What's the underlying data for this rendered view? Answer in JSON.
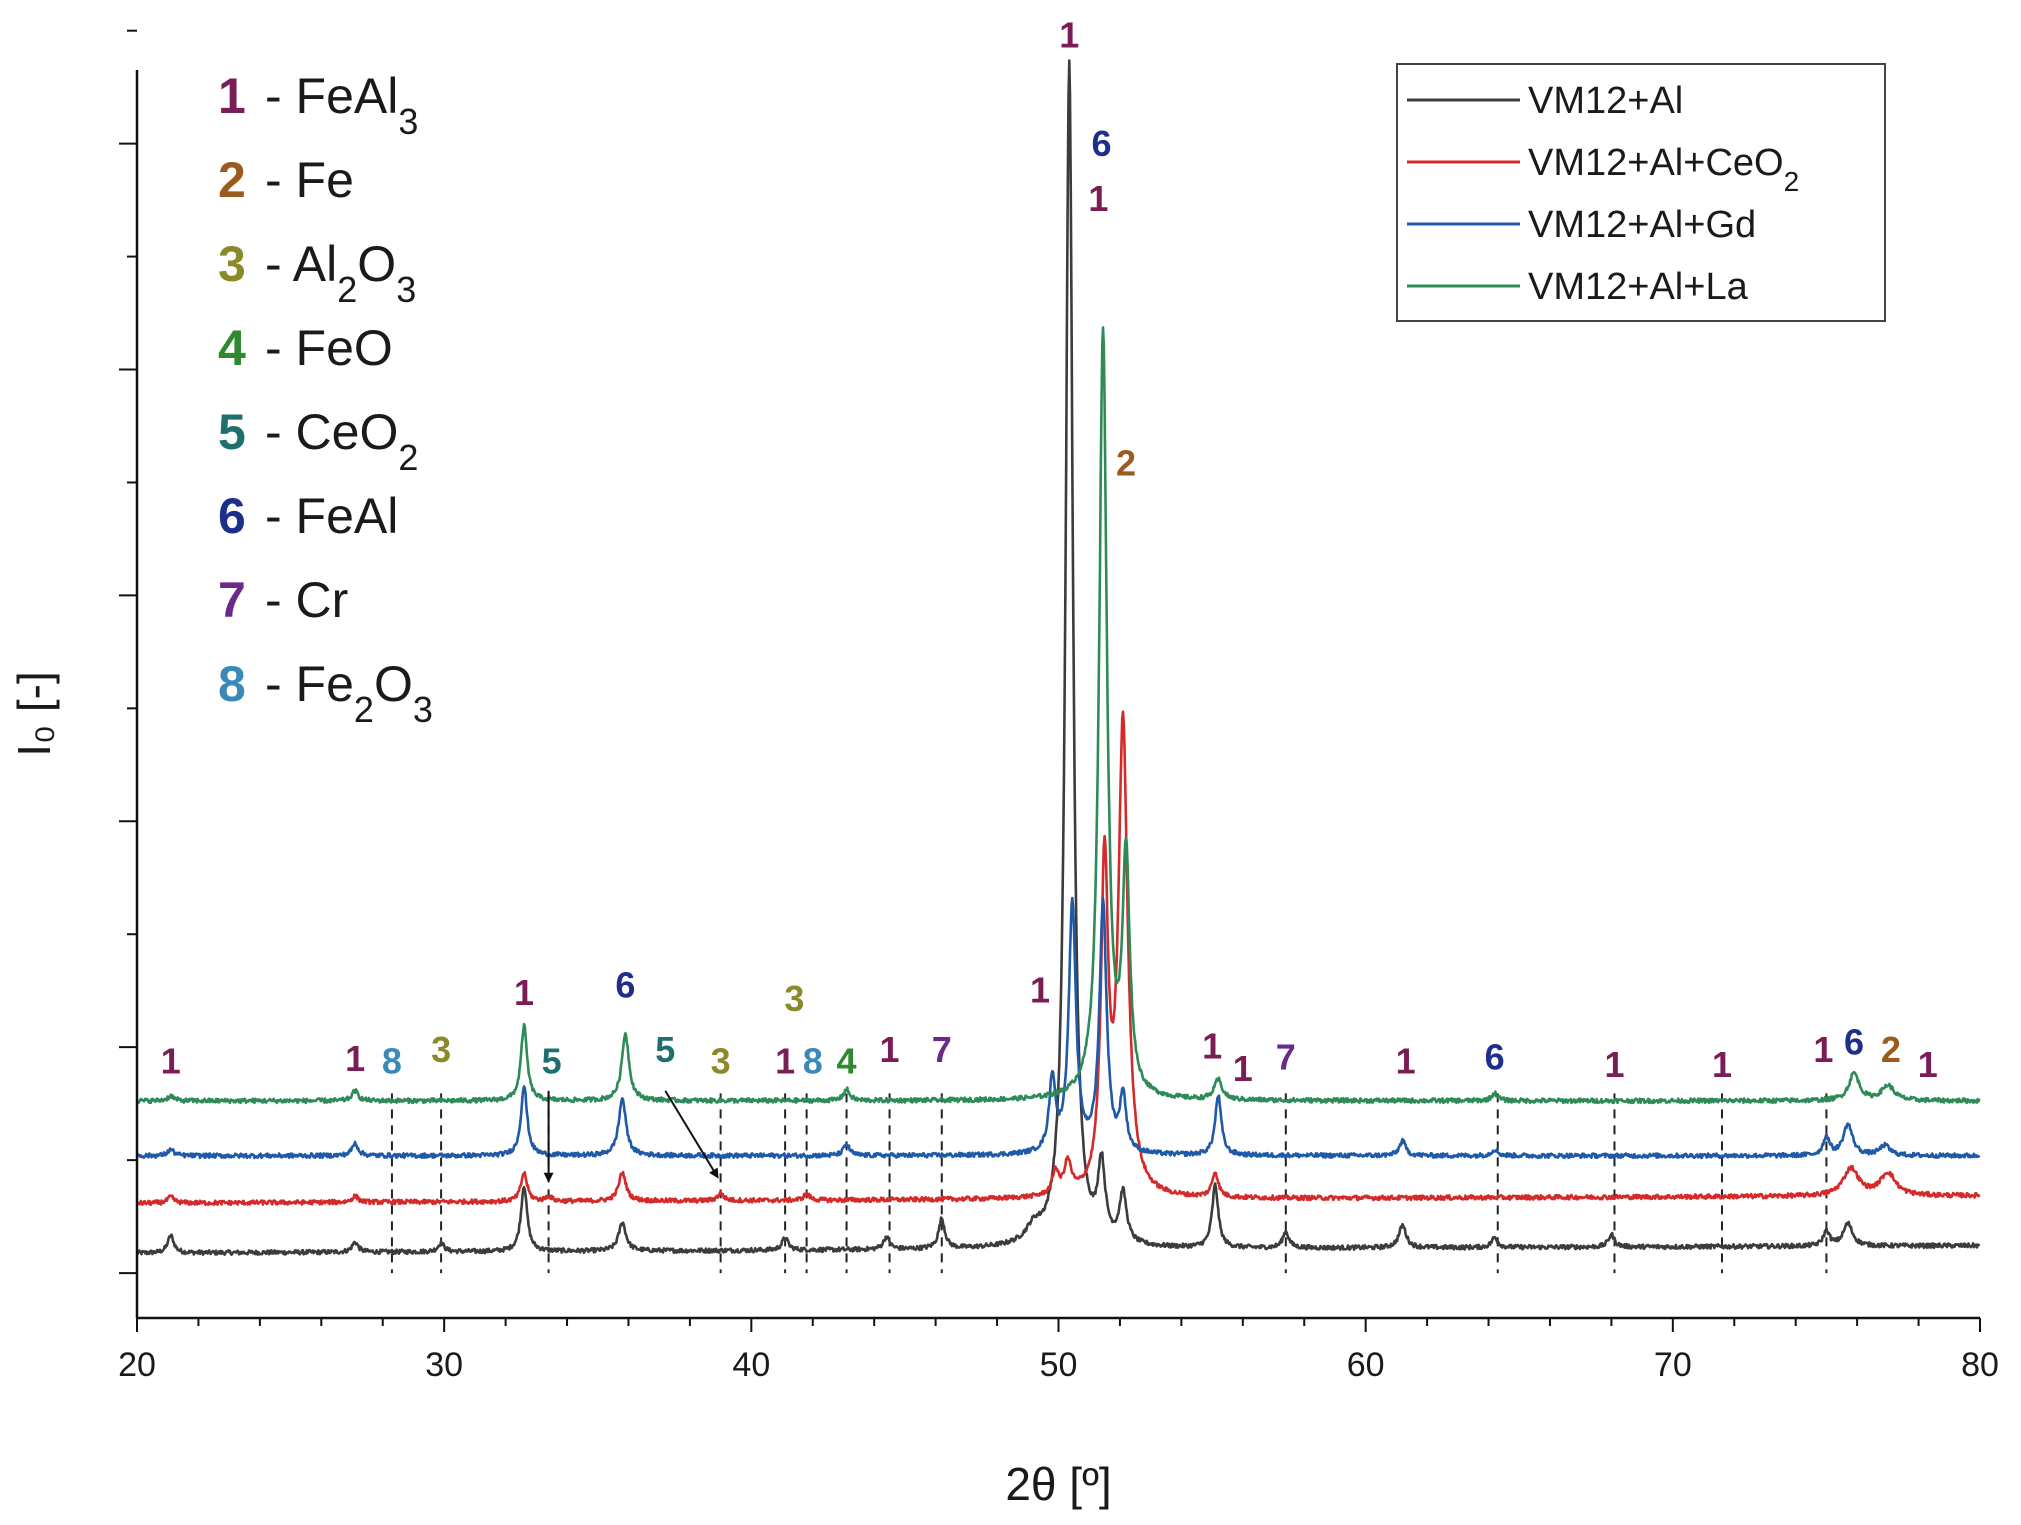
{
  "colors": {
    "vm12_al": "#3c3c3c",
    "vm12_al_ceo2": "#d42a2a",
    "vm12_al_gd": "#1f5aa8",
    "vm12_al_la": "#2e8a57",
    "p1": "#7a1c55",
    "p2": "#9b5a1e",
    "p3": "#8a8a2a",
    "p4": "#2f8a2f",
    "p5": "#1f6f6f",
    "p6": "#1d2f8a",
    "p7": "#6a2a8a",
    "p8": "#3a8ab8"
  },
  "chart_data": {
    "type": "line",
    "xlabel": "2θ [º]",
    "ylabel": "I₀ [-]",
    "xlim": [
      20,
      80
    ],
    "ylim": [
      0,
      100
    ],
    "x_ticks": [
      20,
      30,
      40,
      50,
      60,
      70,
      80
    ],
    "series": [
      {
        "name": "VM12+Al",
        "color_key": "vm12_al",
        "baseline": 5.2,
        "slope": 0.01,
        "peaks": [
          [
            21.1,
            1.4,
            0.12
          ],
          [
            27.1,
            0.8,
            0.12
          ],
          [
            29.9,
            0.7,
            0.12
          ],
          [
            32.6,
            5.3,
            0.12
          ],
          [
            35.8,
            2.3,
            0.14
          ],
          [
            41.1,
            1.0,
            0.12
          ],
          [
            44.4,
            1.0,
            0.12
          ],
          [
            46.2,
            2.4,
            0.12
          ],
          [
            49.2,
            1.2,
            0.3
          ],
          [
            50.35,
            95.0,
            0.14
          ],
          [
            51.4,
            6.0,
            0.14
          ],
          [
            52.1,
            4.0,
            0.14
          ],
          [
            55.1,
            5.0,
            0.12
          ],
          [
            57.4,
            1.3,
            0.12
          ],
          [
            61.2,
            1.8,
            0.14
          ],
          [
            64.2,
            0.8,
            0.12
          ],
          [
            68.0,
            1.0,
            0.12
          ],
          [
            75.0,
            1.2,
            0.12
          ],
          [
            75.7,
            1.8,
            0.18
          ]
        ]
      },
      {
        "name": "VM12+Al+CeO2",
        "color_key": "vm12_al_ceo2",
        "baseline": 9.2,
        "slope": 0.01,
        "peaks": [
          [
            21.1,
            0.5,
            0.12
          ],
          [
            27.1,
            0.5,
            0.12
          ],
          [
            32.6,
            2.3,
            0.12
          ],
          [
            33.4,
            0.4,
            0.12
          ],
          [
            35.8,
            2.3,
            0.14
          ],
          [
            39.0,
            0.6,
            0.12
          ],
          [
            41.8,
            0.5,
            0.12
          ],
          [
            49.9,
            1.9,
            0.12
          ],
          [
            50.3,
            2.5,
            0.14
          ],
          [
            51.5,
            26.0,
            0.14
          ],
          [
            52.1,
            37.6,
            0.18
          ],
          [
            55.1,
            2.0,
            0.12
          ],
          [
            75.8,
            2.2,
            0.3
          ],
          [
            77.0,
            1.8,
            0.3
          ]
        ]
      },
      {
        "name": "VM12+Al+Gd",
        "color_key": "vm12_al_gd",
        "baseline": 13.0,
        "slope": 0.0,
        "peaks": [
          [
            21.1,
            0.5,
            0.12
          ],
          [
            27.1,
            1.0,
            0.12
          ],
          [
            32.6,
            5.6,
            0.12
          ],
          [
            35.8,
            4.6,
            0.14
          ],
          [
            43.1,
            0.9,
            0.12
          ],
          [
            49.8,
            5.9,
            0.12
          ],
          [
            50.45,
            20.0,
            0.14
          ],
          [
            51.45,
            20.0,
            0.14
          ],
          [
            52.1,
            4.5,
            0.12
          ],
          [
            55.2,
            4.8,
            0.12
          ],
          [
            61.2,
            1.2,
            0.12
          ],
          [
            64.2,
            0.5,
            0.12
          ],
          [
            75.0,
            1.5,
            0.12
          ],
          [
            75.7,
            2.5,
            0.18
          ],
          [
            76.9,
            0.8,
            0.2
          ]
        ]
      },
      {
        "name": "VM12+Al+La",
        "color_key": "vm12_al_la",
        "baseline": 17.4,
        "slope": 0.0,
        "peaks": [
          [
            21.1,
            0.4,
            0.12
          ],
          [
            27.1,
            0.8,
            0.12
          ],
          [
            32.6,
            6.0,
            0.12
          ],
          [
            35.9,
            5.4,
            0.14
          ],
          [
            43.1,
            0.9,
            0.12
          ],
          [
            51.45,
            61.5,
            0.15
          ],
          [
            52.2,
            18.8,
            0.14
          ],
          [
            55.2,
            1.6,
            0.15
          ],
          [
            64.2,
            0.6,
            0.12
          ],
          [
            75.9,
            2.2,
            0.2
          ],
          [
            77.0,
            1.2,
            0.25
          ]
        ]
      }
    ],
    "dashed_lines": [
      {
        "x": 28.3,
        "top": 18.0
      },
      {
        "x": 29.9,
        "top": 18.0
      },
      {
        "x": 33.4,
        "top": 18.0
      },
      {
        "x": 39.0,
        "top": 18.0
      },
      {
        "x": 41.1,
        "top": 18.0
      },
      {
        "x": 41.8,
        "top": 18.0
      },
      {
        "x": 43.1,
        "top": 18.0
      },
      {
        "x": 44.5,
        "top": 18.0
      },
      {
        "x": 46.2,
        "top": 18.0
      },
      {
        "x": 57.4,
        "top": 18.0
      },
      {
        "x": 64.3,
        "top": 18.0
      },
      {
        "x": 68.1,
        "top": 18.0
      },
      {
        "x": 71.6,
        "top": 18.0
      },
      {
        "x": 75.0,
        "top": 18.0
      }
    ],
    "arrows": [
      {
        "x1": 33.4,
        "y1": 18.2,
        "x2": 33.4,
        "y2": 11.0
      },
      {
        "x1": 37.2,
        "y1": 18.2,
        "x2": 38.9,
        "y2": 11.3
      }
    ],
    "peak_labels": [
      {
        "text": "1",
        "x": 21.1,
        "y": 19.6,
        "phase": "p1"
      },
      {
        "text": "1",
        "x": 27.1,
        "y": 19.8,
        "phase": "p1"
      },
      {
        "text": "8",
        "x": 28.3,
        "y": 19.6,
        "phase": "p8"
      },
      {
        "text": "3",
        "x": 29.9,
        "y": 20.5,
        "phase": "p3"
      },
      {
        "text": "1",
        "x": 32.6,
        "y": 25.1,
        "phase": "p1"
      },
      {
        "text": "5",
        "x": 33.5,
        "y": 19.6,
        "phase": "p5"
      },
      {
        "text": "6",
        "x": 35.9,
        "y": 25.7,
        "phase": "p6"
      },
      {
        "text": "5",
        "x": 37.2,
        "y": 20.5,
        "phase": "p5"
      },
      {
        "text": "3",
        "x": 39.0,
        "y": 19.6,
        "phase": "p3"
      },
      {
        "text": "3",
        "x": 41.4,
        "y": 24.6,
        "phase": "p3"
      },
      {
        "text": "1",
        "x": 41.1,
        "y": 19.6,
        "phase": "p1"
      },
      {
        "text": "8",
        "x": 42.0,
        "y": 19.6,
        "phase": "p8"
      },
      {
        "text": "4",
        "x": 43.1,
        "y": 19.6,
        "phase": "p4"
      },
      {
        "text": "1",
        "x": 44.5,
        "y": 20.5,
        "phase": "p1"
      },
      {
        "text": "7",
        "x": 46.2,
        "y": 20.5,
        "phase": "p7"
      },
      {
        "text": "1",
        "x": 49.4,
        "y": 25.3,
        "phase": "p1"
      },
      {
        "text": "1",
        "x": 50.35,
        "y": 101.8,
        "phase": "p1"
      },
      {
        "text": "6",
        "x": 51.4,
        "y": 93.1,
        "phase": "p6"
      },
      {
        "text": "1",
        "x": 51.3,
        "y": 88.7,
        "phase": "p1"
      },
      {
        "text": "2",
        "x": 52.2,
        "y": 67.5,
        "phase": "p2"
      },
      {
        "text": "1",
        "x": 55.0,
        "y": 20.8,
        "phase": "p1"
      },
      {
        "text": "1",
        "x": 56.0,
        "y": 19.0,
        "phase": "p1"
      },
      {
        "text": "7",
        "x": 57.4,
        "y": 19.9,
        "phase": "p7"
      },
      {
        "text": "1",
        "x": 61.3,
        "y": 19.6,
        "phase": "p1"
      },
      {
        "text": "6",
        "x": 64.2,
        "y": 19.9,
        "phase": "p6"
      },
      {
        "text": "1",
        "x": 68.1,
        "y": 19.3,
        "phase": "p1"
      },
      {
        "text": "1",
        "x": 71.6,
        "y": 19.3,
        "phase": "p1"
      },
      {
        "text": "1",
        "x": 74.9,
        "y": 20.5,
        "phase": "p1"
      },
      {
        "text": "6",
        "x": 75.9,
        "y": 21.1,
        "phase": "p6"
      },
      {
        "text": "2",
        "x": 77.1,
        "y": 20.5,
        "phase": "p2"
      },
      {
        "text": "1",
        "x": 78.3,
        "y": 19.3,
        "phase": "p1"
      }
    ],
    "phase_legend": [
      {
        "num": "1",
        "dash": "-",
        "name": "FeAl",
        "sub": "3",
        "tail": "",
        "phase": "p1"
      },
      {
        "num": "2",
        "dash": "-",
        "name": "Fe",
        "sub": "",
        "tail": "",
        "phase": "p2"
      },
      {
        "num": "3",
        "dash": "-",
        "name": "Al",
        "sub": "2",
        "tail": "O",
        "sub2": "3",
        "phase": "p3"
      },
      {
        "num": "4",
        "dash": "-",
        "name": "FeO",
        "sub": "",
        "tail": "",
        "phase": "p4"
      },
      {
        "num": "5",
        "dash": "-",
        "name": "CeO",
        "sub": "2",
        "tail": "",
        "phase": "p5"
      },
      {
        "num": "6",
        "dash": "-",
        "name": "FeAl",
        "sub": "",
        "tail": "",
        "phase": "p6"
      },
      {
        "num": "7",
        "dash": "-",
        "name": "Cr",
        "sub": "",
        "tail": "",
        "phase": "p7"
      },
      {
        "num": "8",
        "dash": "-",
        "name": "Fe",
        "sub": "2",
        "tail": "O",
        "sub2": "3",
        "phase": "p8"
      }
    ],
    "series_legend": [
      {
        "name": "VM12+Al",
        "color_key": "vm12_al"
      },
      {
        "name": "VM12+Al+CeO",
        "sub": "2",
        "color_key": "vm12_al_ceo2"
      },
      {
        "name": "VM12+Al+Gd",
        "color_key": "vm12_al_gd"
      },
      {
        "name": "VM12+Al+La",
        "color_key": "vm12_al_la"
      }
    ],
    "legend_position": "top-right",
    "phase_legend_position": "top-left"
  }
}
